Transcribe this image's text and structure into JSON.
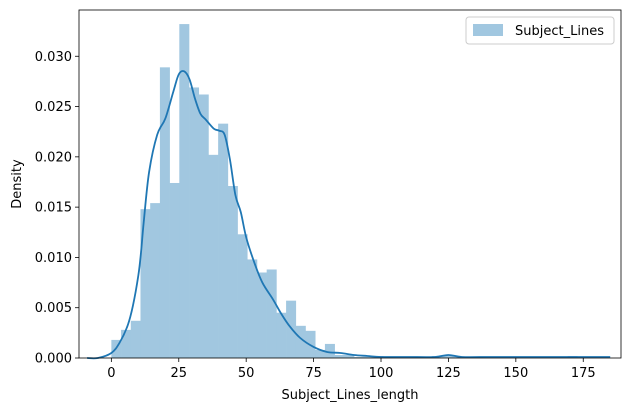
{
  "chart_data": {
    "type": "histogram",
    "title": "",
    "xlabel": "Subject_Lines_length",
    "ylabel": "Density",
    "xlim": [
      -12,
      189
    ],
    "ylim": [
      0,
      0.0346
    ],
    "x_ticks": [
      0,
      25,
      50,
      75,
      100,
      125,
      150,
      175
    ],
    "y_ticks": [
      0.0,
      0.005,
      0.01,
      0.015,
      0.02,
      0.025,
      0.03
    ],
    "y_tick_labels": [
      "0.000",
      "0.005",
      "0.010",
      "0.015",
      "0.020",
      "0.025",
      "0.030"
    ],
    "grid": false,
    "legend": {
      "position": "top-right",
      "entries": [
        "Subject_Lines"
      ]
    },
    "colors": {
      "bars": "#a1c7e0",
      "kde": "#1f77b4"
    },
    "series": [
      {
        "name": "Subject_Lines",
        "type": "histogram",
        "bin_width": 3.6,
        "bin_start": 0,
        "values": [
          0.0018,
          0.0028,
          0.0037,
          0.0148,
          0.0154,
          0.0289,
          0.0174,
          0.0332,
          0.0269,
          0.0262,
          0.0202,
          0.0233,
          0.0171,
          0.0123,
          0.0098,
          0.0085,
          0.0088,
          0.0045,
          0.0057,
          0.0032,
          0.0027,
          0.0008,
          0.0014,
          0.0003,
          0.0003,
          0.0001,
          0.0001,
          0.0002,
          0,
          0,
          0,
          0,
          0,
          0.0002,
          0.0002,
          0.0002,
          0,
          0,
          0,
          0,
          0,
          0,
          0,
          0,
          0,
          0,
          0,
          0.0002
        ]
      },
      {
        "name": "Subject_Lines",
        "type": "kde",
        "x": [
          -9,
          -5,
          0,
          3,
          6,
          8,
          10,
          11,
          12,
          14,
          17,
          20,
          23,
          25,
          27,
          29,
          31,
          33,
          35,
          38,
          40,
          42,
          44,
          46,
          48,
          50,
          53,
          56,
          60,
          63,
          66,
          70,
          75,
          80,
          85,
          90,
          95,
          100,
          110,
          120,
          125,
          130,
          140,
          150,
          160,
          170,
          180,
          185
        ],
        "y": [
          0.0,
          0.0,
          0.0005,
          0.0015,
          0.0032,
          0.0052,
          0.0082,
          0.0105,
          0.0135,
          0.0185,
          0.0222,
          0.0238,
          0.0265,
          0.0282,
          0.0285,
          0.0277,
          0.0258,
          0.0243,
          0.0237,
          0.0228,
          0.0226,
          0.0222,
          0.0197,
          0.0162,
          0.0145,
          0.012,
          0.0095,
          0.0075,
          0.0058,
          0.0044,
          0.0032,
          0.002,
          0.0011,
          0.0006,
          0.0005,
          0.0003,
          0.0002,
          0.0001,
          0.0001,
          0.0001,
          0.0003,
          0.0001,
          0.0001,
          0.0001,
          0.0001,
          0.0001,
          0.0001,
          0.0001
        ]
      }
    ]
  }
}
